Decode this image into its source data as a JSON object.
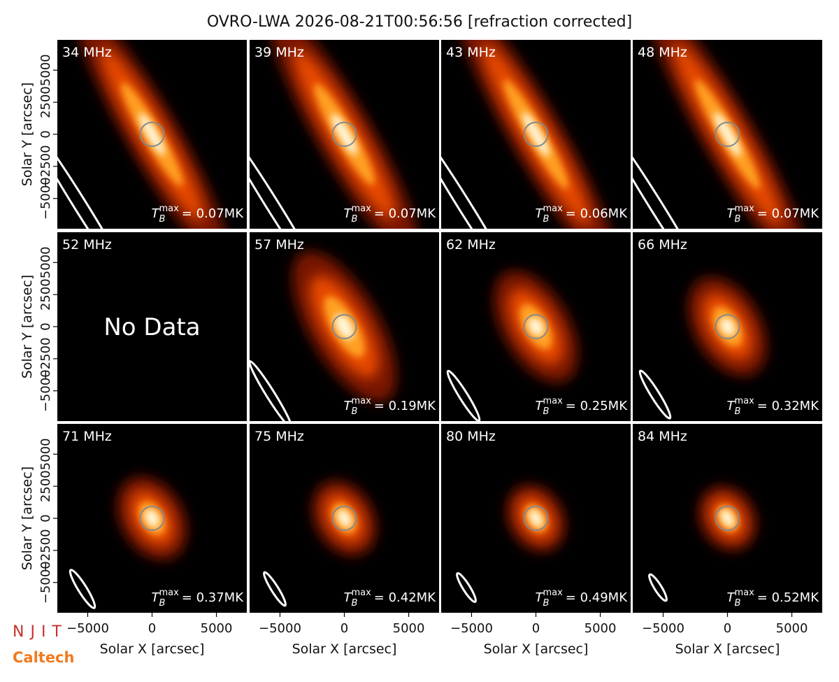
{
  "title": "OVRO-LWA 2026-08-21T00:56:56 [refraction corrected]",
  "logos": [
    "NJIT",
    "Caltech"
  ],
  "tb_symbol": {
    "base": "T",
    "sub": "B",
    "sup": "max"
  },
  "chart_data": [
    {
      "type": "image",
      "label": "34 MHz",
      "tb": "= 0.07MK",
      "xlim": [
        -7360,
        7360
      ],
      "ylim": [
        -7360,
        7360
      ],
      "ylabel": "Solar Y [arcsec]",
      "yticks": [
        {
          "value": -5000,
          "label": "−5000"
        },
        {
          "value": -2500,
          "label": "−2500"
        },
        0,
        2500,
        5000
      ]
    },
    {
      "type": "image",
      "label": "39 MHz",
      "tb": "= 0.07MK",
      "xlim": [
        -7360,
        7360
      ],
      "ylim": [
        -7360,
        7360
      ]
    },
    {
      "type": "image",
      "label": "43 MHz",
      "tb": "= 0.06MK",
      "xlim": [
        -7360,
        7360
      ],
      "ylim": [
        -7360,
        7360
      ]
    },
    {
      "type": "image",
      "label": "48 MHz",
      "tb": "= 0.07MK",
      "xlim": [
        -7360,
        7360
      ],
      "ylim": [
        -7360,
        7360
      ]
    },
    {
      "type": "image",
      "label": "52 MHz",
      "note": "No Data",
      "xlim": [
        -7360,
        7360
      ],
      "ylim": [
        -7360,
        7360
      ],
      "ylabel": "Solar Y [arcsec]",
      "yticks": [
        {
          "value": -5000,
          "label": "−5000"
        },
        {
          "value": -2500,
          "label": "−2500"
        },
        0,
        2500,
        5000
      ]
    },
    {
      "type": "image",
      "label": "57 MHz",
      "tb": "= 0.19MK",
      "xlim": [
        -7360,
        7360
      ],
      "ylim": [
        -7360,
        7360
      ]
    },
    {
      "type": "image",
      "label": "62 MHz",
      "tb": "= 0.25MK",
      "xlim": [
        -7360,
        7360
      ],
      "ylim": [
        -7360,
        7360
      ]
    },
    {
      "type": "image",
      "label": "66 MHz",
      "tb": "= 0.32MK",
      "xlim": [
        -7360,
        7360
      ],
      "ylim": [
        -7360,
        7360
      ]
    },
    {
      "type": "image",
      "label": "71 MHz",
      "tb": "= 0.37MK",
      "xlim": [
        -7360,
        7360
      ],
      "ylim": [
        -7360,
        7360
      ],
      "xlabel": "Solar X [arcsec]",
      "xticks": [
        {
          "value": -5000,
          "label": "−5000"
        },
        0,
        5000
      ],
      "ylabel": "Solar Y [arcsec]",
      "yticks": [
        {
          "value": -5000,
          "label": "−5000"
        },
        {
          "value": -2500,
          "label": "−2500"
        },
        0,
        2500,
        5000
      ]
    },
    {
      "type": "image",
      "label": "75 MHz",
      "tb": "= 0.42MK",
      "xlim": [
        -7360,
        7360
      ],
      "ylim": [
        -7360,
        7360
      ],
      "xlabel": "Solar X [arcsec]",
      "xticks": [
        {
          "value": -5000,
          "label": "−5000"
        },
        0,
        5000
      ]
    },
    {
      "type": "image",
      "label": "80 MHz",
      "tb": "= 0.49MK",
      "xlim": [
        -7360,
        7360
      ],
      "ylim": [
        -7360,
        7360
      ],
      "xlabel": "Solar X [arcsec]",
      "xticks": [
        {
          "value": -5000,
          "label": "−5000"
        },
        0,
        5000
      ]
    },
    {
      "type": "image",
      "label": "84 MHz",
      "tb": "= 0.52MK",
      "xlim": [
        -7360,
        7360
      ],
      "ylim": [
        -7360,
        7360
      ],
      "xlabel": "Solar X [arcsec]",
      "xticks": [
        {
          "value": -5000,
          "label": "−5000"
        },
        0,
        5000
      ]
    }
  ]
}
